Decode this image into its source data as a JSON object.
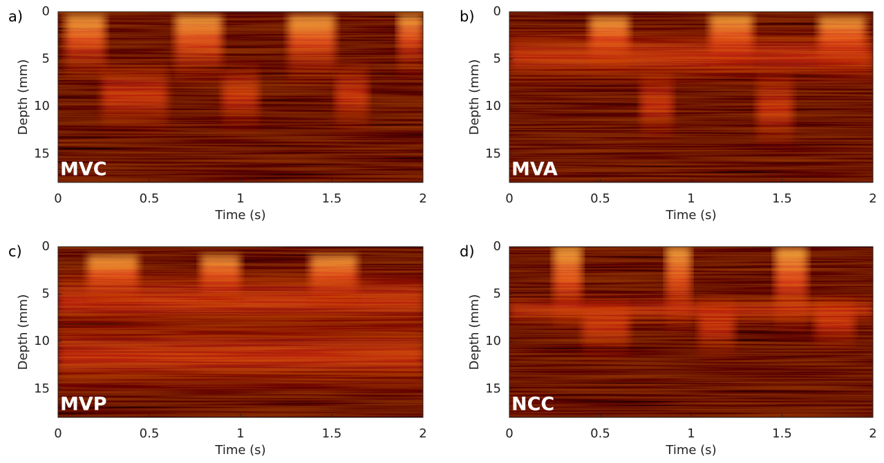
{
  "chart_data": [
    {
      "type": "image",
      "panel_label": "a)",
      "label": "MVC",
      "xlabel": "Time (s)",
      "ylabel": "Depth (mm)",
      "xlim": [
        0,
        2
      ],
      "ylim": [
        18,
        0
      ],
      "xticks": [
        0,
        0.5,
        1,
        1.5,
        2
      ],
      "yticks": [
        0,
        5,
        10,
        15
      ]
    },
    {
      "type": "image",
      "panel_label": "b)",
      "label": "MVA",
      "xlabel": "Time (s)",
      "ylabel": "Depth (mm)",
      "xlim": [
        0,
        2
      ],
      "ylim": [
        18,
        0
      ],
      "xticks": [
        0,
        0.5,
        1,
        1.5,
        2
      ],
      "yticks": [
        0,
        5,
        10,
        15
      ]
    },
    {
      "type": "image",
      "panel_label": "c)",
      "label": "MVP",
      "xlabel": "Time (s)",
      "ylabel": "Depth (mm)",
      "xlim": [
        0,
        2
      ],
      "ylim": [
        18,
        0
      ],
      "xticks": [
        0,
        0.5,
        1,
        1.5,
        2
      ],
      "yticks": [
        0,
        5,
        10,
        15
      ]
    },
    {
      "type": "image",
      "panel_label": "d)",
      "label": "NCC",
      "xlabel": "Time (s)",
      "ylabel": "Depth (mm)",
      "xlim": [
        0,
        2
      ],
      "ylim": [
        18,
        0
      ],
      "xticks": [
        0,
        0.5,
        1,
        1.5,
        2
      ],
      "yticks": [
        0,
        5,
        10,
        15
      ]
    }
  ]
}
